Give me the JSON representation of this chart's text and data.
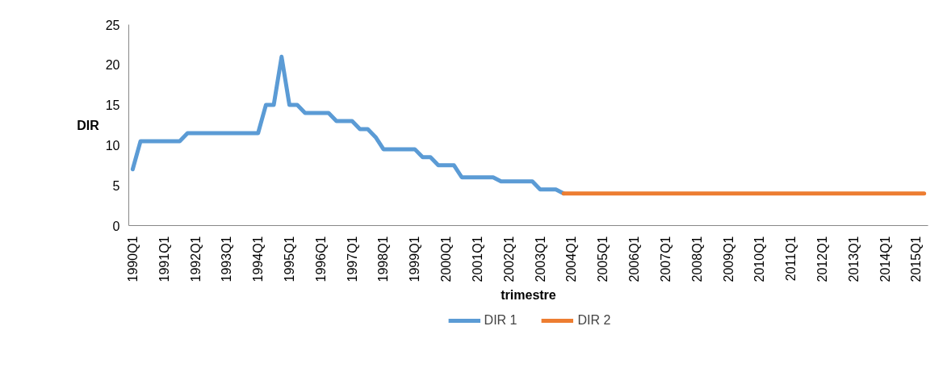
{
  "chart_data": {
    "type": "line",
    "xlabel": "trimestre",
    "ylabel": "DIR",
    "categories": [
      "1990Q1",
      null,
      null,
      null,
      "1991Q1",
      null,
      null,
      null,
      "1992Q1",
      null,
      null,
      null,
      "1993Q1",
      null,
      null,
      null,
      "1994Q1",
      null,
      null,
      null,
      "1995Q1",
      null,
      null,
      null,
      "1996Q1",
      null,
      null,
      null,
      "1997Q1",
      null,
      null,
      null,
      "1998Q1",
      null,
      null,
      null,
      "1999Q1",
      null,
      null,
      null,
      "2000Q1",
      null,
      null,
      null,
      "2001Q1",
      null,
      null,
      null,
      "2002Q1",
      null,
      null,
      null,
      "2003Q1",
      null,
      null,
      null,
      "2004Q1",
      null,
      null,
      null,
      "2005Q1",
      null,
      null,
      null,
      "2006Q1",
      null,
      null,
      null,
      "2007Q1",
      null,
      null,
      null,
      "2008Q1",
      null,
      null,
      null,
      "2009Q1",
      null,
      null,
      null,
      "2010Q1",
      null,
      null,
      null,
      "2011Q1",
      null,
      null,
      null,
      "2012Q1",
      null,
      null,
      null,
      "2013Q1",
      null,
      null,
      null,
      "2014Q1",
      null,
      null,
      null,
      "2015Q1",
      null
    ],
    "series": [
      {
        "name": "DIR 1",
        "color": "#5b9bd5",
        "values": [
          7,
          10.5,
          10.5,
          10.5,
          10.5,
          10.5,
          10.5,
          11.5,
          11.5,
          11.5,
          11.5,
          11.5,
          11.5,
          11.5,
          11.5,
          11.5,
          11.5,
          15,
          15,
          21,
          15,
          15,
          14,
          14,
          14,
          14,
          13,
          13,
          13,
          12,
          12,
          11,
          9.5,
          9.5,
          9.5,
          9.5,
          9.5,
          8.5,
          8.5,
          7.5,
          7.5,
          7.5,
          6,
          6,
          6,
          6,
          6,
          5.5,
          5.5,
          5.5,
          5.5,
          5.5,
          4.5,
          4.5,
          4.5,
          4,
          null,
          null,
          null,
          null,
          null,
          null,
          null,
          null,
          null,
          null,
          null,
          null,
          null,
          null,
          null,
          null,
          null,
          null,
          null,
          null,
          null,
          null,
          null,
          null,
          null,
          null,
          null,
          null,
          null,
          null,
          null,
          null,
          null,
          null,
          null,
          null,
          null,
          null,
          null,
          null,
          null,
          null,
          null,
          null,
          null,
          null
        ]
      },
      {
        "name": "DIR 2",
        "color": "#ed7d31",
        "values": [
          null,
          null,
          null,
          null,
          null,
          null,
          null,
          null,
          null,
          null,
          null,
          null,
          null,
          null,
          null,
          null,
          null,
          null,
          null,
          null,
          null,
          null,
          null,
          null,
          null,
          null,
          null,
          null,
          null,
          null,
          null,
          null,
          null,
          null,
          null,
          null,
          null,
          null,
          null,
          null,
          null,
          null,
          null,
          null,
          null,
          null,
          null,
          null,
          null,
          null,
          null,
          null,
          null,
          null,
          null,
          4,
          4,
          4,
          4,
          4,
          4,
          4,
          4,
          4,
          4,
          4,
          4,
          4,
          4,
          4,
          4,
          4,
          4,
          4,
          4,
          4,
          4,
          4,
          4,
          4,
          4,
          4,
          4,
          4,
          4,
          4,
          4,
          4,
          4,
          4,
          4,
          4,
          4,
          4,
          4,
          4,
          4,
          4,
          4,
          4,
          4,
          4
        ]
      }
    ],
    "ylim": [
      0,
      25
    ],
    "yticks": [
      0,
      5,
      10,
      15,
      20,
      25
    ],
    "grid": false,
    "legend": "bottom",
    "marker": "none",
    "line_style": "solid"
  }
}
